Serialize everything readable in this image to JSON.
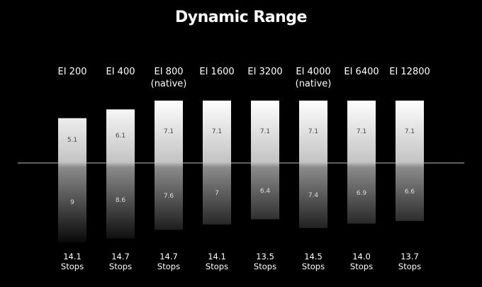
{
  "chart_data": {
    "type": "diverging-bar",
    "title": "Dynamic Range",
    "categories": [
      "EI 200",
      "EI 400",
      "EI 800\n(native)",
      "EI 1600",
      "EI 3200",
      "EI 4000\n(native)",
      "EI 6400",
      "EI 12800"
    ],
    "series": [
      {
        "values": [
          5.1,
          6.1,
          7.1,
          7.1,
          7.1,
          7.1,
          7.1,
          7.1
        ]
      },
      {
        "values": [
          9,
          8.6,
          7.6,
          7,
          6.4,
          7.4,
          6.9,
          6.6
        ]
      }
    ],
    "totals": [
      14.1,
      14.7,
      14.7,
      14.1,
      13.5,
      14.5,
      14.0,
      13.7
    ],
    "total_labels": [
      "14.1\nStops",
      "14.7\nStops",
      "14.7\nStops",
      "14.1\nStops",
      "13.5\nStops",
      "14.5\nStops",
      "14.0\nStops",
      "13.7\nStops"
    ]
  }
}
